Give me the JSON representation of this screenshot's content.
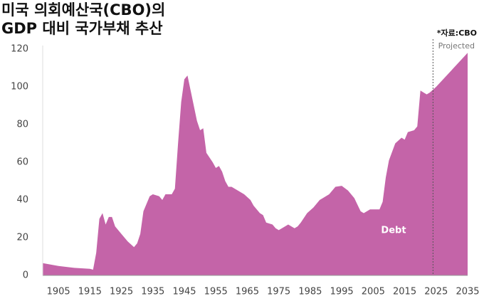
{
  "chart_data": {
    "type": "area",
    "title": "미국 의회예산국(CBO)의",
    "subtitle": "GDP 대비 국가부채 추산",
    "source": "*자료:CBO",
    "projection_label": "Projected",
    "projection_x": 2024,
    "x": [
      1900,
      1905,
      1910,
      1915,
      1916,
      1917,
      1918,
      1919,
      1920,
      1921,
      1922,
      1923,
      1925,
      1927,
      1929,
      1930,
      1931,
      1932,
      1934,
      1935,
      1937,
      1938,
      1939,
      1941,
      1942,
      1943,
      1944,
      1945,
      1946,
      1948,
      1949,
      1950,
      1951,
      1952,
      1954,
      1955,
      1956,
      1957,
      1958,
      1959,
      1960,
      1962,
      1964,
      1966,
      1967,
      1969,
      1970,
      1971,
      1973,
      1974,
      1975,
      1977,
      1978,
      1980,
      1981,
      1982,
      1984,
      1986,
      1988,
      1989,
      1991,
      1993,
      1995,
      1997,
      1999,
      2001,
      2002,
      2004,
      2007,
      2008,
      2009,
      2010,
      2012,
      2014,
      2015,
      2016,
      2018,
      2019,
      2020,
      2021,
      2022,
      2023,
      2025,
      2035
    ],
    "series": [
      {
        "name": "Debt",
        "color": "#c464a8",
        "values": [
          6.5,
          5,
          4,
          3.5,
          3,
          12,
          30,
          33,
          27,
          31,
          31,
          26,
          22,
          18,
          15,
          17,
          22,
          34,
          42,
          43,
          42,
          40,
          43,
          43,
          46,
          70,
          92,
          104,
          106,
          90,
          82,
          77,
          78,
          65,
          60,
          57,
          58,
          55,
          50,
          47,
          47,
          45,
          43,
          40,
          37,
          33,
          32,
          28,
          27,
          25,
          24,
          26,
          27,
          25,
          26,
          28,
          33,
          36,
          40,
          41,
          43,
          47,
          47.5,
          45,
          41,
          34,
          33,
          35,
          35,
          39,
          52,
          61,
          70,
          73,
          72,
          76,
          77,
          79,
          98,
          97,
          96,
          97,
          100,
          118
        ]
      }
    ],
    "xlim": [
      1900,
      2035
    ],
    "xticks": [
      1905,
      1915,
      1925,
      1935,
      1945,
      1955,
      1965,
      1975,
      1985,
      1995,
      2005,
      2015,
      2025,
      2035
    ],
    "ylim": [
      0,
      120
    ],
    "yticks": [
      0,
      20,
      40,
      60,
      80,
      100,
      120
    ]
  }
}
